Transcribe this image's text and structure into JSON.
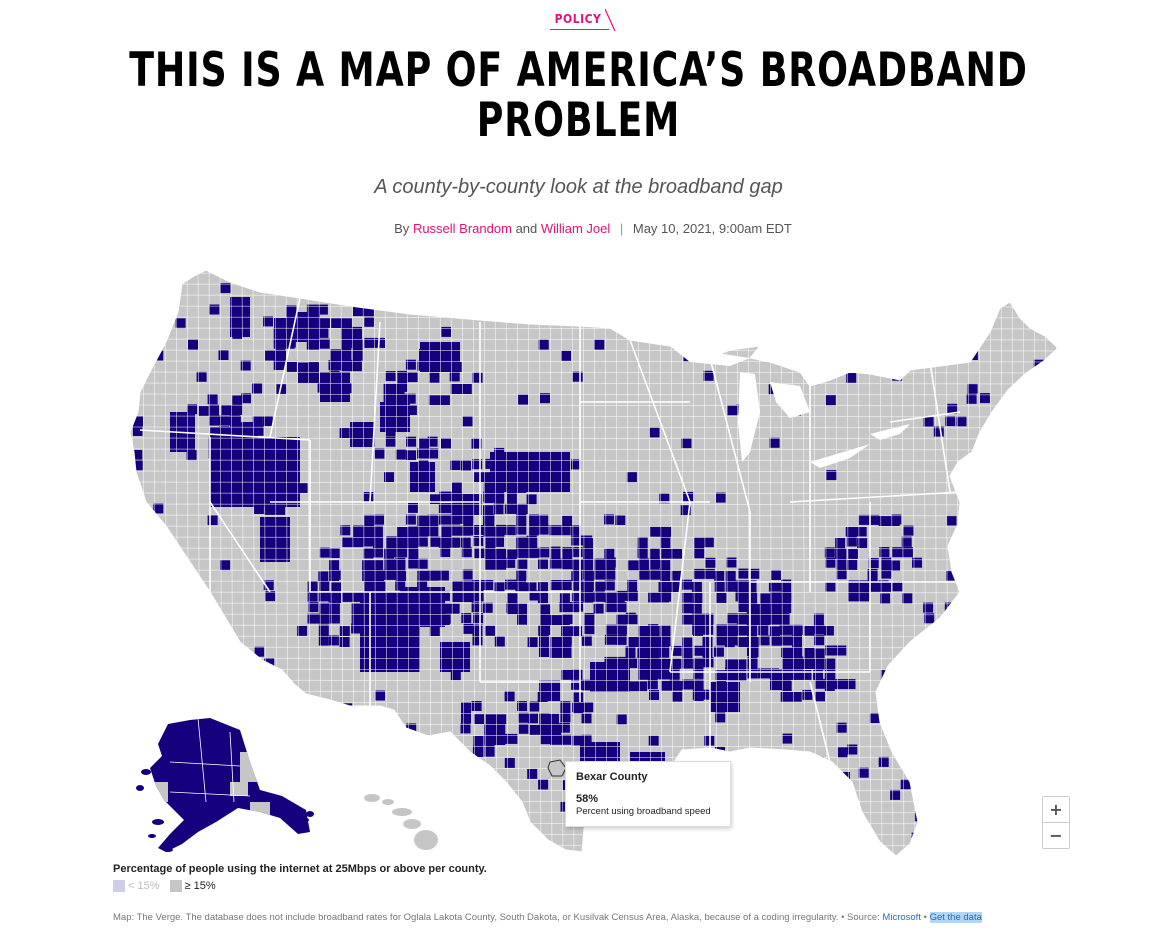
{
  "kicker": "POLICY",
  "article": {
    "title_line1": "THIS IS A MAP OF AMERICA’S BROADBAND",
    "title_line2": "PROBLEM",
    "subtitle": "A county-by-county look at the broadband gap",
    "byline_prefix": "By",
    "author1": "Russell Brandom",
    "byline_and": "and",
    "author2": "William Joel",
    "date": "May 10, 2021, 9:00am EDT"
  },
  "map": {
    "colors": {
      "low": "#15007e",
      "high": "#c6c6c6",
      "lowLegend": "#cfcdea",
      "border": "#ffffff",
      "highlight": "#ffffff"
    },
    "tooltip": {
      "county": "Bexar County",
      "value": "58%",
      "description": "Percent using broadband speed"
    },
    "zoom_in": "+",
    "zoom_out": "−"
  },
  "legend": {
    "title": "Percentage of people using the internet at 25Mbps or above per county.",
    "items": [
      {
        "label": "< 15%",
        "color": "#cfcdea"
      },
      {
        "label": "≥ 15%",
        "color": "#c6c6c6"
      }
    ]
  },
  "footnote": {
    "text": "Map: The Verge. The database does not include broadband rates for Oglala Lakota County, South Dakota, or Kusilvak Census Area, Alaska, because of a coding irregularity. • Source:",
    "source_link": "Microsoft",
    "separator": "•",
    "data_link": "Get the data"
  }
}
